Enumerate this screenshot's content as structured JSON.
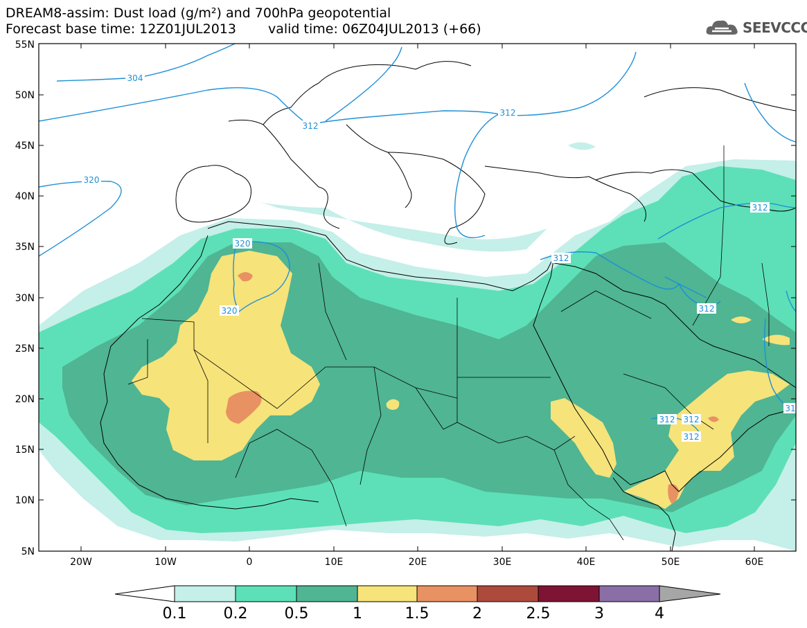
{
  "title": {
    "line1": "DREAM8-assim: Dust load (g/m²) and 700hPa geopotential",
    "base_time": "Forecast base time: 12Z01JUL2013",
    "valid_time": "valid time: 06Z04JUL2013 (+66)"
  },
  "logo": {
    "text": "SEEVCCC",
    "icon": "cloud-icon"
  },
  "map": {
    "lon_labels": [
      "20W",
      "10W",
      "0",
      "10E",
      "20E",
      "30E",
      "40E",
      "50E",
      "60E"
    ],
    "lat_labels": [
      "55N",
      "50N",
      "45N",
      "40N",
      "35N",
      "30N",
      "25N",
      "20N",
      "15N",
      "10N",
      "5N"
    ],
    "contour_labels": [
      "304",
      "312",
      "312",
      "320",
      "320",
      "320",
      "312",
      "312",
      "312",
      "312",
      "312",
      "312",
      "31"
    ]
  },
  "colorbar": {
    "colors": [
      "#ffffff",
      "#c5efe9",
      "#5de0b7",
      "#4fb593",
      "#f6e37a",
      "#e89163",
      "#ac4b3c",
      "#7e1433",
      "#8a6fa6",
      "#a6a6a6"
    ],
    "labels": [
      "0.1",
      "0.2",
      "0.5",
      "1",
      "1.5",
      "2",
      "2.5",
      "3",
      "4"
    ]
  },
  "colors": {
    "contour_line": "#1e8fd6",
    "c01": "#c5efe9",
    "c02": "#5de0b7",
    "c05": "#4fb593",
    "c1": "#f6e37a",
    "c15": "#e89163"
  }
}
